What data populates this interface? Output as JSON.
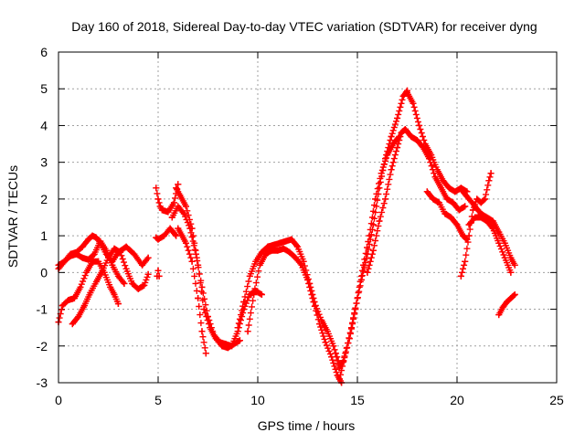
{
  "chart_data": {
    "type": "scatter",
    "title": "Day 160 of 2018, Sidereal Day-to-day VTEC variation (SDTVAR) for receiver dyng",
    "xlabel": "GPS time / hours",
    "ylabel": "SDTVAR / TECUs",
    "xlim": [
      0,
      25
    ],
    "ylim": [
      -3,
      6
    ],
    "xticks": [
      0,
      5,
      10,
      15,
      20,
      25
    ],
    "yticks": [
      -3,
      -2,
      -1,
      0,
      1,
      2,
      3,
      4,
      5,
      6
    ],
    "grid": true,
    "marker": "+",
    "series_color": "#ff0000",
    "series": [
      {
        "name": "trace-1",
        "x": [
          0.0,
          0.2,
          0.5,
          0.8,
          1.1,
          1.4,
          1.7,
          2.0,
          2.3,
          2.6,
          2.8,
          3.0
        ],
        "y": [
          -1.35,
          -0.9,
          -0.75,
          -0.7,
          -0.4,
          0.0,
          0.3,
          0.3,
          0.0,
          -0.4,
          -0.6,
          -0.85
        ]
      },
      {
        "name": "trace-2",
        "x": [
          0.0,
          0.3,
          0.6,
          0.9,
          1.2,
          1.5,
          1.8,
          2.1,
          2.4,
          2.7,
          3.0,
          3.3
        ],
        "y": [
          0.1,
          0.3,
          0.45,
          0.5,
          0.4,
          0.35,
          0.5,
          0.85,
          0.6,
          0.2,
          -0.1,
          -0.3
        ]
      },
      {
        "name": "trace-3",
        "x": [
          0.0,
          0.3,
          0.6,
          0.9,
          1.2,
          1.5,
          1.7,
          1.9,
          2.1,
          2.4,
          2.7,
          3.0,
          3.4,
          3.8,
          4.2,
          4.5
        ],
        "y": [
          0.2,
          0.3,
          0.5,
          0.55,
          0.7,
          0.9,
          1.0,
          0.95,
          0.8,
          0.5,
          0.3,
          0.55,
          0.7,
          0.5,
          0.2,
          0.4
        ]
      },
      {
        "name": "trace-4",
        "x": [
          0.7,
          1.0,
          1.3,
          1.6,
          1.9,
          2.2,
          2.5,
          2.8,
          3.1,
          3.4,
          3.7,
          4.0,
          4.3,
          4.5
        ],
        "y": [
          -1.4,
          -1.2,
          -0.9,
          -0.55,
          -0.25,
          0.05,
          0.4,
          0.65,
          0.55,
          0.1,
          -0.3,
          -0.45,
          -0.35,
          -0.05
        ]
      },
      {
        "name": "trace-5",
        "x": [
          4.9,
          5.0,
          5.1,
          5.2,
          5.5,
          5.8,
          6.0
        ],
        "y": [
          2.3,
          2.0,
          1.8,
          1.7,
          1.65,
          1.9,
          2.4
        ]
      },
      {
        "name": "trace-6",
        "x": [
          4.9,
          5.0,
          5.3,
          5.6,
          5.9
        ],
        "y": [
          0.95,
          0.9,
          1.0,
          1.2,
          1.0
        ]
      },
      {
        "name": "trace-7",
        "x": [
          4.95,
          5.0,
          5.05
        ],
        "y": [
          -0.1,
          0.05,
          -0.1
        ]
      },
      {
        "name": "trace-8",
        "x": [
          5.9,
          6.1,
          6.4,
          6.7,
          7.0,
          7.3,
          7.6,
          7.9,
          8.2,
          8.5,
          8.8,
          9.1
        ],
        "y": [
          2.3,
          2.1,
          1.8,
          1.2,
          0.2,
          -1.0,
          -1.5,
          -1.8,
          -2.0,
          -2.05,
          -1.95,
          -1.85
        ]
      },
      {
        "name": "trace-9",
        "x": [
          5.7,
          6.0,
          6.3,
          6.6,
          6.9,
          7.2,
          7.5,
          7.8,
          8.1,
          8.4,
          8.7,
          9.0,
          9.3,
          9.6,
          9.9,
          10.2
        ],
        "y": [
          1.5,
          1.8,
          1.6,
          1.2,
          0.5,
          -0.4,
          -1.2,
          -1.7,
          -1.9,
          -1.95,
          -2.0,
          -1.6,
          -1.0,
          -0.6,
          -0.5,
          -0.6
        ]
      },
      {
        "name": "trace-10",
        "x": [
          6.0,
          6.2,
          6.4,
          6.7,
          7.0,
          7.2,
          7.4
        ],
        "y": [
          1.2,
          1.0,
          0.8,
          0.3,
          -0.7,
          -1.6,
          -2.2
        ]
      },
      {
        "name": "trace-11",
        "x": [
          9.0,
          9.3,
          9.6,
          9.9,
          10.2,
          10.5,
          10.8,
          11.1,
          11.4,
          11.7,
          12.0,
          12.3,
          12.6,
          12.9,
          13.2,
          13.5,
          13.8,
          14.1
        ],
        "y": [
          -1.5,
          -0.8,
          -0.1,
          0.3,
          0.55,
          0.7,
          0.75,
          0.8,
          0.85,
          0.9,
          0.7,
          0.3,
          -0.3,
          -0.9,
          -1.3,
          -1.6,
          -2.0,
          -2.5
        ]
      },
      {
        "name": "trace-12",
        "x": [
          9.5,
          9.8,
          10.1,
          10.4,
          10.7,
          11.0,
          11.3,
          11.6,
          11.9,
          12.2,
          12.5,
          12.8,
          13.1,
          13.4,
          13.7,
          14.0,
          14.2
        ],
        "y": [
          -1.6,
          -0.6,
          0.2,
          0.5,
          0.6,
          0.6,
          0.65,
          0.55,
          0.4,
          0.2,
          -0.2,
          -0.8,
          -1.4,
          -1.9,
          -2.3,
          -2.8,
          -3.0
        ]
      },
      {
        "name": "trace-13",
        "x": [
          13.9,
          14.1,
          14.3,
          14.6,
          14.9,
          15.2,
          15.5,
          15.8,
          16.1,
          16.4,
          16.7,
          17.0,
          17.3,
          17.5
        ],
        "y": [
          -2.2,
          -2.6,
          -2.4,
          -1.8,
          -1.0,
          -0.2,
          0.5,
          1.3,
          2.3,
          3.1,
          3.7,
          4.2,
          4.8,
          4.95
        ]
      },
      {
        "name": "trace-14",
        "x": [
          14.1,
          14.4,
          14.7,
          15.0,
          15.3,
          15.6,
          15.9,
          16.2,
          16.5,
          16.8,
          17.1
        ],
        "y": [
          -2.9,
          -2.2,
          -1.5,
          -0.7,
          0.2,
          1.0,
          2.0,
          2.7,
          3.2,
          3.5,
          3.7
        ]
      },
      {
        "name": "trace-15",
        "x": [
          15.5,
          15.8,
          16.1,
          16.4,
          16.7,
          17.0,
          17.2,
          17.4
        ],
        "y": [
          0.0,
          0.6,
          1.4,
          2.0,
          2.8,
          3.4,
          3.8,
          3.9
        ]
      },
      {
        "name": "trace-16",
        "x": [
          17.5,
          17.8,
          18.1,
          18.4,
          18.7,
          19.0,
          19.3,
          19.6,
          19.9,
          20.2,
          20.5
        ],
        "y": [
          4.9,
          4.6,
          4.0,
          3.5,
          3.2,
          2.8,
          2.5,
          2.3,
          2.2,
          2.3,
          2.2
        ]
      },
      {
        "name": "trace-17",
        "x": [
          17.4,
          17.7,
          18.0,
          18.3,
          18.6,
          18.9,
          19.2,
          19.5,
          19.8,
          20.1,
          20.4
        ],
        "y": [
          3.9,
          3.7,
          3.6,
          3.4,
          3.1,
          2.6,
          2.3,
          2.0,
          1.9,
          1.7,
          1.8
        ]
      },
      {
        "name": "trace-18",
        "x": [
          18.5,
          18.8,
          19.1,
          19.4,
          19.7,
          20.0,
          20.3,
          20.5
        ],
        "y": [
          2.2,
          2.0,
          1.9,
          1.6,
          1.5,
          1.3,
          1.0,
          0.9
        ]
      },
      {
        "name": "trace-19",
        "x": [
          20.2,
          20.4,
          20.6,
          20.8,
          21.0,
          21.2,
          21.4,
          21.6,
          21.7
        ],
        "y": [
          -0.1,
          0.3,
          1.0,
          1.7,
          2.0,
          1.9,
          2.0,
          2.5,
          2.7
        ]
      },
      {
        "name": "trace-20",
        "x": [
          20.3,
          20.6,
          20.9,
          21.2,
          21.5,
          21.8,
          22.1,
          22.4,
          22.7,
          22.9
        ],
        "y": [
          2.2,
          2.0,
          1.8,
          1.6,
          1.5,
          1.4,
          1.1,
          0.8,
          0.4,
          0.2
        ]
      },
      {
        "name": "trace-21",
        "x": [
          20.6,
          20.9,
          21.2,
          21.5,
          21.8,
          22.1,
          22.4,
          22.7
        ],
        "y": [
          1.3,
          1.5,
          1.5,
          1.4,
          1.2,
          0.8,
          0.4,
          0.0
        ]
      },
      {
        "name": "trace-22",
        "x": [
          22.1,
          22.3,
          22.5,
          22.7,
          22.9
        ],
        "y": [
          -1.15,
          -0.95,
          -0.8,
          -0.7,
          -0.6
        ]
      }
    ]
  }
}
